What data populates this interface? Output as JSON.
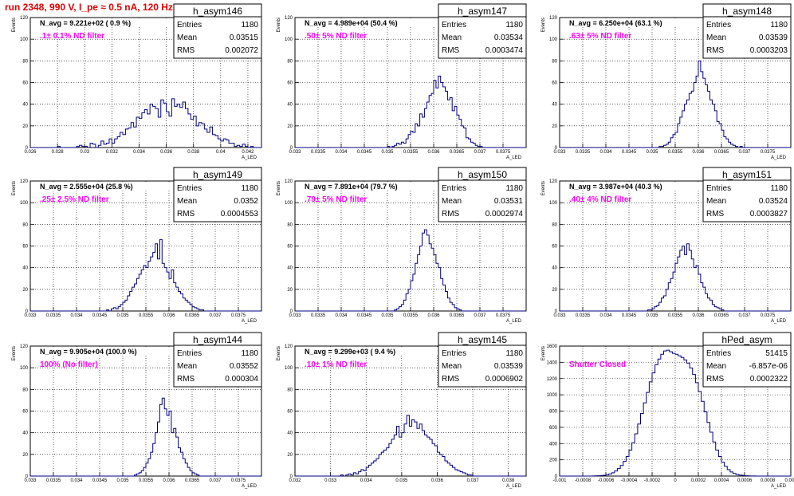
{
  "page": {
    "title": "run 2348,   990 V, I_pe ≈ 0.5 nA, 120 Hz"
  },
  "colors": {
    "title": "#e00000",
    "hist_line": "#000080",
    "annotation": "#ff00ff",
    "grid": "#000000",
    "axes": "#000000"
  },
  "chart_data": [
    {
      "type": "histogram",
      "name": "h_asym146",
      "stats": {
        "Entries": "1180",
        "Mean": "0.03515",
        "RMS": "0.002072"
      },
      "navg_label": "N_avg = 9.221e+02 ( 0.9 %)",
      "filter_label": ".1± 0.1% ND filter",
      "ylabel": "Events",
      "xlabel": "A_LED",
      "xlim": [
        0.026,
        0.043
      ],
      "ylim": [
        0,
        120
      ],
      "xticks": [
        "0.026",
        "0.028",
        "0.03",
        "0.032",
        "0.034",
        "0.036",
        "0.038",
        "0.04",
        "0.042"
      ],
      "yticks": [
        "0",
        "20",
        "40",
        "60",
        "80",
        "100",
        "120"
      ],
      "grid": true,
      "bins": {
        "lo": 0.026,
        "hi": 0.043,
        "n": 85
      },
      "values": [
        0,
        0,
        0,
        0,
        0,
        0,
        0,
        0,
        0,
        0,
        1,
        0,
        0,
        0,
        0,
        0,
        0,
        1,
        2,
        1,
        1,
        0,
        4,
        3,
        0,
        2,
        6,
        3,
        4,
        8,
        4,
        8,
        10,
        14,
        12,
        17,
        18,
        23,
        19,
        28,
        27,
        32,
        35,
        31,
        40,
        38,
        36,
        28,
        44,
        41,
        33,
        29,
        45,
        38,
        40,
        37,
        42,
        36,
        31,
        26,
        29,
        20,
        23,
        22,
        17,
        14,
        19,
        12,
        11,
        8,
        6,
        8,
        7,
        4,
        4,
        1,
        2,
        1,
        3,
        1,
        0,
        1,
        0,
        0,
        0
      ]
    },
    {
      "type": "histogram",
      "name": "h_asym147",
      "stats": {
        "Entries": "1180",
        "Mean": "0.03534",
        "RMS": "0.0003474"
      },
      "navg_label": "N_avg = 4.989e+04 (50.4 %)",
      "filter_label": ".50± 5% ND filter",
      "ylabel": "Events",
      "xlabel": "A_LED",
      "xlim": [
        0.033,
        0.038
      ],
      "ylim": [
        0,
        120
      ],
      "xticks": [
        "0.033",
        "0.0335",
        "0.034",
        "0.0345",
        "0.035",
        "0.0355",
        "0.036",
        "0.0365",
        "0.037",
        "0.0375"
      ],
      "yticks": [
        "0",
        "20",
        "40",
        "60",
        "80",
        "100",
        "120"
      ],
      "grid": true,
      "bins": {
        "lo": 0.033,
        "hi": 0.038,
        "n": 100
      },
      "values": [
        0,
        0,
        0,
        0,
        0,
        0,
        0,
        0,
        0,
        0,
        0,
        0,
        0,
        0,
        0,
        0,
        0,
        0,
        0,
        0,
        0,
        0,
        0,
        0,
        0,
        0,
        0,
        0,
        0,
        0,
        0,
        0,
        0,
        0,
        0,
        0,
        0,
        0,
        0,
        0,
        1,
        0,
        1,
        2,
        4,
        3,
        5,
        4,
        8,
        12,
        15,
        14,
        22,
        20,
        31,
        28,
        36,
        42,
        48,
        50,
        62,
        55,
        66,
        60,
        56,
        52,
        44,
        46,
        34,
        38,
        30,
        26,
        20,
        18,
        9,
        8,
        5,
        4,
        2,
        1,
        1,
        0,
        0,
        0,
        0,
        0,
        0,
        0,
        0,
        0,
        0,
        0,
        0,
        0,
        0,
        0,
        0,
        0,
        0,
        0
      ]
    },
    {
      "type": "histogram",
      "name": "h_asym148",
      "stats": {
        "Entries": "1180",
        "Mean": "0.03539",
        "RMS": "0.0003203"
      },
      "navg_label": "N_avg = 6.250e+04 (63.1 %)",
      "filter_label": ".63± 5% ND filter",
      "ylabel": "Events",
      "xlabel": "A_LED",
      "xlim": [
        0.033,
        0.038
      ],
      "ylim": [
        0,
        120
      ],
      "xticks": [
        "0.033",
        "0.0335",
        "0.034",
        "0.0345",
        "0.035",
        "0.0355",
        "0.036",
        "0.0365",
        "0.037",
        "0.0375"
      ],
      "yticks": [
        "0",
        "20",
        "40",
        "60",
        "80",
        "100",
        "120"
      ],
      "grid": true,
      "bins": {
        "lo": 0.033,
        "hi": 0.038,
        "n": 100
      },
      "values": [
        0,
        0,
        0,
        0,
        0,
        0,
        0,
        0,
        0,
        0,
        0,
        0,
        0,
        0,
        0,
        0,
        0,
        0,
        0,
        0,
        0,
        0,
        0,
        0,
        0,
        0,
        0,
        0,
        0,
        0,
        0,
        0,
        0,
        0,
        0,
        0,
        0,
        0,
        0,
        0,
        0,
        0,
        0,
        1,
        1,
        2,
        3,
        5,
        9,
        12,
        14,
        22,
        28,
        34,
        40,
        44,
        50,
        52,
        60,
        66,
        80,
        70,
        64,
        58,
        52,
        44,
        40,
        34,
        24,
        22,
        16,
        10,
        8,
        5,
        3,
        2,
        1,
        0,
        1,
        0,
        0,
        0,
        0,
        0,
        0,
        0,
        0,
        0,
        0,
        0,
        0,
        0,
        0,
        0,
        0,
        0,
        0,
        0,
        0,
        0
      ]
    },
    {
      "type": "histogram",
      "name": "h_asym149",
      "stats": {
        "Entries": "1180",
        "Mean": "0.0352",
        "RMS": "0.0004553"
      },
      "navg_label": "N_avg = 2.555e+04 (25.8 %)",
      "filter_label": ".25± 2.5% ND filter",
      "ylabel": "Events",
      "xlabel": "A_LED",
      "xlim": [
        0.033,
        0.038
      ],
      "ylim": [
        0,
        120
      ],
      "xticks": [
        "0.033",
        "0.0335",
        "0.034",
        "0.0345",
        "0.035",
        "0.0355",
        "0.036",
        "0.0365",
        "0.037",
        "0.0375"
      ],
      "yticks": [
        "0",
        "20",
        "40",
        "60",
        "80",
        "100",
        "120"
      ],
      "grid": true,
      "bins": {
        "lo": 0.033,
        "hi": 0.038,
        "n": 100
      },
      "values": [
        0,
        0,
        0,
        0,
        0,
        0,
        0,
        0,
        0,
        0,
        0,
        0,
        0,
        0,
        0,
        0,
        0,
        0,
        0,
        0,
        0,
        0,
        0,
        0,
        0,
        0,
        0,
        0,
        0,
        0,
        0,
        0,
        0,
        1,
        0,
        2,
        3,
        2,
        4,
        6,
        8,
        10,
        14,
        18,
        22,
        25,
        30,
        34,
        38,
        42,
        40,
        46,
        50,
        54,
        62,
        48,
        66,
        44,
        40,
        36,
        30,
        38,
        26,
        22,
        18,
        16,
        12,
        10,
        8,
        6,
        4,
        3,
        2,
        1,
        1,
        0,
        0,
        0,
        0,
        0,
        0,
        0,
        0,
        0,
        0,
        0,
        0,
        0,
        0,
        0,
        0,
        0,
        0,
        0,
        0,
        0,
        0,
        0,
        0,
        0
      ]
    },
    {
      "type": "histogram",
      "name": "h_asym150",
      "stats": {
        "Entries": "1180",
        "Mean": "0.03531",
        "RMS": "0.0002974"
      },
      "navg_label": "N_avg = 7.891e+04 (79.7 %)",
      "filter_label": ".79± 5% ND filter",
      "ylabel": "Events",
      "xlabel": "A_LED",
      "xlim": [
        0.033,
        0.038
      ],
      "ylim": [
        0,
        120
      ],
      "xticks": [
        "0.033",
        "0.0335",
        "0.034",
        "0.0345",
        "0.035",
        "0.0355",
        "0.036",
        "0.0365",
        "0.037",
        "0.0375"
      ],
      "yticks": [
        "0",
        "20",
        "40",
        "60",
        "80",
        "100",
        "120"
      ],
      "grid": true,
      "bins": {
        "lo": 0.033,
        "hi": 0.038,
        "n": 100
      },
      "values": [
        0,
        0,
        0,
        0,
        0,
        0,
        0,
        0,
        0,
        0,
        0,
        0,
        0,
        0,
        0,
        0,
        0,
        0,
        0,
        0,
        0,
        0,
        0,
        0,
        0,
        0,
        0,
        0,
        0,
        0,
        0,
        0,
        0,
        0,
        0,
        0,
        0,
        0,
        0,
        0,
        0,
        0,
        0,
        1,
        2,
        4,
        6,
        10,
        16,
        20,
        28,
        34,
        44,
        52,
        60,
        72,
        75,
        70,
        62,
        58,
        52,
        44,
        40,
        30,
        24,
        18,
        12,
        8,
        6,
        3,
        2,
        1,
        0,
        0,
        0,
        0,
        0,
        0,
        0,
        0,
        0,
        0,
        0,
        0,
        0,
        0,
        0,
        0,
        0,
        0,
        0,
        0,
        0,
        0,
        0,
        0,
        0,
        0,
        0,
        0
      ]
    },
    {
      "type": "histogram",
      "name": "h_asym151",
      "stats": {
        "Entries": "1180",
        "Mean": "0.03524",
        "RMS": "0.0003827"
      },
      "navg_label": "N_avg = 3.987e+04 (40.3 %)",
      "filter_label": ".40± 4% ND filter",
      "ylabel": "Events",
      "xlabel": "A_LED",
      "xlim": [
        0.033,
        0.038
      ],
      "ylim": [
        0,
        120
      ],
      "xticks": [
        "0.033",
        "0.0335",
        "0.034",
        "0.0345",
        "0.035",
        "0.0355",
        "0.036",
        "0.0365",
        "0.037",
        "0.0375"
      ],
      "yticks": [
        "0",
        "20",
        "40",
        "60",
        "80",
        "100",
        "120"
      ],
      "grid": true,
      "bins": {
        "lo": 0.033,
        "hi": 0.038,
        "n": 100
      },
      "values": [
        0,
        0,
        0,
        0,
        0,
        0,
        0,
        0,
        0,
        0,
        0,
        0,
        0,
        0,
        0,
        0,
        0,
        0,
        0,
        0,
        0,
        0,
        0,
        0,
        0,
        0,
        0,
        0,
        0,
        0,
        0,
        0,
        0,
        0,
        0,
        0,
        0,
        0,
        1,
        1,
        2,
        4,
        5,
        8,
        12,
        14,
        20,
        26,
        30,
        36,
        44,
        50,
        56,
        60,
        52,
        62,
        56,
        48,
        40,
        42,
        34,
        26,
        22,
        16,
        12,
        10,
        6,
        4,
        3,
        2,
        1,
        0,
        0,
        0,
        0,
        0,
        0,
        0,
        0,
        0,
        0,
        0,
        0,
        0,
        0,
        0,
        0,
        0,
        0,
        0,
        0,
        0,
        0,
        0,
        0,
        0,
        0,
        0,
        0,
        0
      ]
    },
    {
      "type": "histogram",
      "name": "h_asym144",
      "stats": {
        "Entries": "1180",
        "Mean": "0.03552",
        "RMS": "0.000304"
      },
      "navg_label": "N_avg = 9.905e+04 (100.0 %)",
      "filter_label": "100% (No filter)",
      "ylabel": "Events",
      "xlabel": "A_LED",
      "xlim": [
        0.033,
        0.038
      ],
      "ylim": [
        0,
        120
      ],
      "xticks": [
        "0.033",
        "0.0335",
        "0.034",
        "0.0345",
        "0.035",
        "0.0355",
        "0.036",
        "0.0365",
        "0.037",
        "0.0375"
      ],
      "yticks": [
        "0",
        "20",
        "40",
        "60",
        "80",
        "100",
        "120"
      ],
      "grid": true,
      "bins": {
        "lo": 0.033,
        "hi": 0.038,
        "n": 100
      },
      "values": [
        0,
        0,
        0,
        0,
        0,
        0,
        0,
        0,
        0,
        0,
        0,
        0,
        0,
        0,
        0,
        0,
        0,
        0,
        0,
        0,
        0,
        0,
        0,
        0,
        0,
        0,
        0,
        0,
        0,
        0,
        0,
        0,
        0,
        0,
        0,
        0,
        0,
        0,
        0,
        0,
        0,
        0,
        0,
        0,
        0,
        1,
        2,
        3,
        5,
        8,
        12,
        16,
        22,
        30,
        40,
        50,
        66,
        72,
        62,
        56,
        60,
        40,
        44,
        36,
        26,
        22,
        16,
        12,
        8,
        5,
        3,
        2,
        1,
        0,
        0,
        0,
        0,
        0,
        0,
        0,
        0,
        0,
        0,
        0,
        0,
        0,
        0,
        0,
        0,
        0,
        0,
        0,
        0,
        0,
        0,
        0,
        0,
        0,
        0,
        0
      ]
    },
    {
      "type": "histogram",
      "name": "h_asym145",
      "stats": {
        "Entries": "1180",
        "Mean": "0.03539",
        "RMS": "0.0006902"
      },
      "navg_label": "N_avg = 9.299e+03 ( 9.4 %)",
      "filter_label": ".10± 1% ND filter",
      "ylabel": "Events",
      "xlabel": "A_LED",
      "xlim": [
        0.032,
        0.0385
      ],
      "ylim": [
        0,
        120
      ],
      "xticks": [
        "0.032",
        "0.033",
        "0.034",
        "0.035",
        "0.036",
        "0.037",
        "0.038"
      ],
      "yticks": [
        "0",
        "20",
        "40",
        "60",
        "80",
        "100",
        "120"
      ],
      "grid": true,
      "bins": {
        "lo": 0.032,
        "hi": 0.0385,
        "n": 91
      },
      "values": [
        0,
        0,
        0,
        0,
        0,
        0,
        0,
        0,
        0,
        0,
        0,
        0,
        0,
        0,
        0,
        0,
        0,
        0,
        1,
        0,
        1,
        2,
        1,
        3,
        2,
        4,
        6,
        5,
        8,
        10,
        12,
        14,
        16,
        20,
        22,
        24,
        26,
        30,
        34,
        38,
        46,
        36,
        40,
        48,
        56,
        46,
        52,
        50,
        44,
        48,
        42,
        38,
        36,
        34,
        30,
        28,
        22,
        20,
        18,
        14,
        12,
        10,
        8,
        6,
        5,
        4,
        3,
        2,
        1,
        1,
        0,
        0,
        0,
        0,
        0,
        0,
        0,
        0,
        0,
        0,
        0,
        0,
        0,
        0,
        0,
        0,
        0,
        0,
        0,
        0,
        0
      ]
    },
    {
      "type": "histogram",
      "name": "hPed_asym",
      "stats": {
        "Entries": "51415",
        "Mean": "-6.857e-06",
        "RMS": "0.0002322"
      },
      "filter_label": "Shutter Closed",
      "ylabel": "Events",
      "xlabel": "A_LED",
      "xlim": [
        -0.001,
        0.001
      ],
      "ylim": [
        0,
        1600
      ],
      "xticks": [
        "-0.001",
        "-0.0008",
        "-0.0006",
        "-0.0004",
        "-0.0002",
        "0",
        "0.0002",
        "0.0004",
        "0.0006",
        "0.0008",
        "0.001"
      ],
      "yticks": [
        "0",
        "200",
        "400",
        "600",
        "800",
        "1000",
        "1200",
        "1400",
        "1600"
      ],
      "grid": true,
      "bins": {
        "lo": -0.001,
        "hi": 0.001,
        "n": 80
      },
      "values": [
        0,
        0,
        0,
        0,
        0,
        0,
        0,
        0,
        0,
        0,
        0,
        1,
        2,
        4,
        6,
        10,
        16,
        26,
        40,
        62,
        92,
        130,
        180,
        240,
        320,
        410,
        520,
        640,
        770,
        900,
        1030,
        1160,
        1270,
        1370,
        1440,
        1500,
        1540,
        1550,
        1530,
        1510,
        1500,
        1480,
        1460,
        1430,
        1390,
        1330,
        1250,
        1150,
        1040,
        920,
        790,
        660,
        540,
        420,
        320,
        240,
        170,
        120,
        80,
        50,
        32,
        20,
        12,
        8,
        4,
        2,
        1,
        1,
        0,
        0,
        0,
        0,
        0,
        0,
        0,
        0,
        0,
        0,
        0,
        0
      ]
    }
  ]
}
